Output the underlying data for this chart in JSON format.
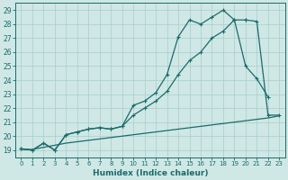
{
  "xlabel": "Humidex (Indice chaleur)",
  "bg_color": "#cfe8e5",
  "grid_color": "#a8cccc",
  "line_color": "#1a6b6b",
  "xlim": [
    -0.5,
    23.5
  ],
  "ylim": [
    18.5,
    29.5
  ],
  "yticks": [
    19,
    20,
    21,
    22,
    23,
    24,
    25,
    26,
    27,
    28,
    29
  ],
  "xticks": [
    0,
    1,
    2,
    3,
    4,
    5,
    6,
    7,
    8,
    9,
    10,
    11,
    12,
    13,
    14,
    15,
    16,
    17,
    18,
    19,
    20,
    21,
    22,
    23
  ],
  "line1_x": [
    0,
    1,
    2,
    3,
    4,
    5,
    6,
    7,
    8,
    9,
    10,
    11,
    12,
    13,
    14,
    15,
    16,
    17,
    18,
    19,
    20,
    21,
    22
  ],
  "line1_y": [
    19.1,
    19.0,
    19.5,
    19.0,
    20.1,
    20.3,
    20.5,
    20.6,
    20.5,
    20.7,
    22.2,
    22.5,
    23.1,
    24.4,
    27.1,
    28.3,
    28.0,
    28.5,
    29.0,
    28.3,
    25.0,
    24.1,
    22.8
  ],
  "line2_x": [
    0,
    1,
    2,
    3,
    4,
    5,
    6,
    7,
    8,
    9,
    10,
    11,
    12,
    13,
    14,
    15,
    16,
    17,
    18,
    19,
    20,
    21,
    22,
    23
  ],
  "line2_y": [
    19.1,
    19.0,
    19.5,
    19.0,
    20.1,
    20.3,
    20.5,
    20.6,
    20.5,
    20.7,
    21.5,
    22.0,
    22.5,
    23.2,
    24.4,
    25.4,
    26.0,
    27.0,
    27.5,
    28.3,
    28.3,
    28.2,
    21.5,
    21.5
  ],
  "line3_x": [
    0,
    1,
    2,
    3,
    4,
    5,
    6,
    7,
    8,
    9,
    10,
    11,
    12,
    13,
    14,
    15,
    16,
    17,
    18,
    19,
    20,
    21,
    22,
    23
  ],
  "line3_y": [
    19.05,
    19.05,
    19.2,
    19.35,
    19.5,
    19.6,
    19.7,
    19.8,
    19.9,
    20.0,
    20.1,
    20.2,
    20.3,
    20.4,
    20.5,
    20.6,
    20.7,
    20.8,
    20.9,
    21.0,
    21.1,
    21.2,
    21.3,
    21.45
  ]
}
